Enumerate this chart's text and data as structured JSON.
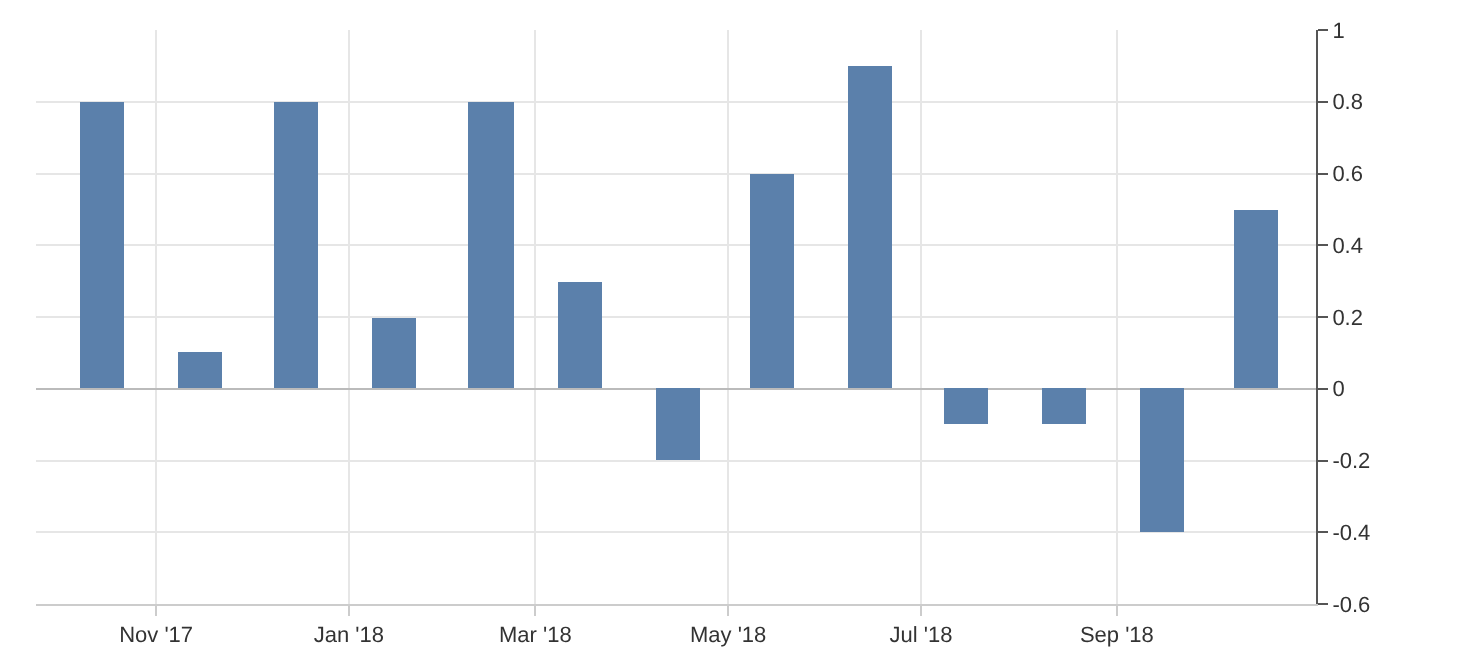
{
  "chart_data": {
    "type": "bar",
    "x": [
      "2017-10-15",
      "2017-11-15",
      "2017-12-15",
      "2018-01-15",
      "2018-02-15",
      "2018-03-15",
      "2018-04-15",
      "2018-05-15",
      "2018-06-15",
      "2018-07-15",
      "2018-08-15",
      "2018-09-15",
      "2018-10-15"
    ],
    "values": [
      0.8,
      0.1,
      0.8,
      0.2,
      0.8,
      0.3,
      -0.2,
      0.6,
      0.9,
      -0.1,
      -0.1,
      -0.4,
      0.5
    ],
    "color": "#5b80ab",
    "xlim": [
      "2017-09-24",
      "2018-11-03"
    ],
    "xticks": [
      {
        "value": "2017-11-01",
        "label": "Nov '17"
      },
      {
        "value": "2018-01-01",
        "label": "Jan '18"
      },
      {
        "value": "2018-03-01",
        "label": "Mar '18"
      },
      {
        "value": "2018-05-01",
        "label": "May '18"
      },
      {
        "value": "2018-07-01",
        "label": "Jul '18"
      },
      {
        "value": "2018-09-01",
        "label": "Sep '18"
      }
    ],
    "ylim": [
      -0.6,
      1
    ],
    "yticks": [
      -0.6,
      -0.4,
      -0.2,
      0,
      0.2,
      0.4,
      0.6,
      0.8,
      1
    ],
    "grid": true,
    "legend": false
  }
}
